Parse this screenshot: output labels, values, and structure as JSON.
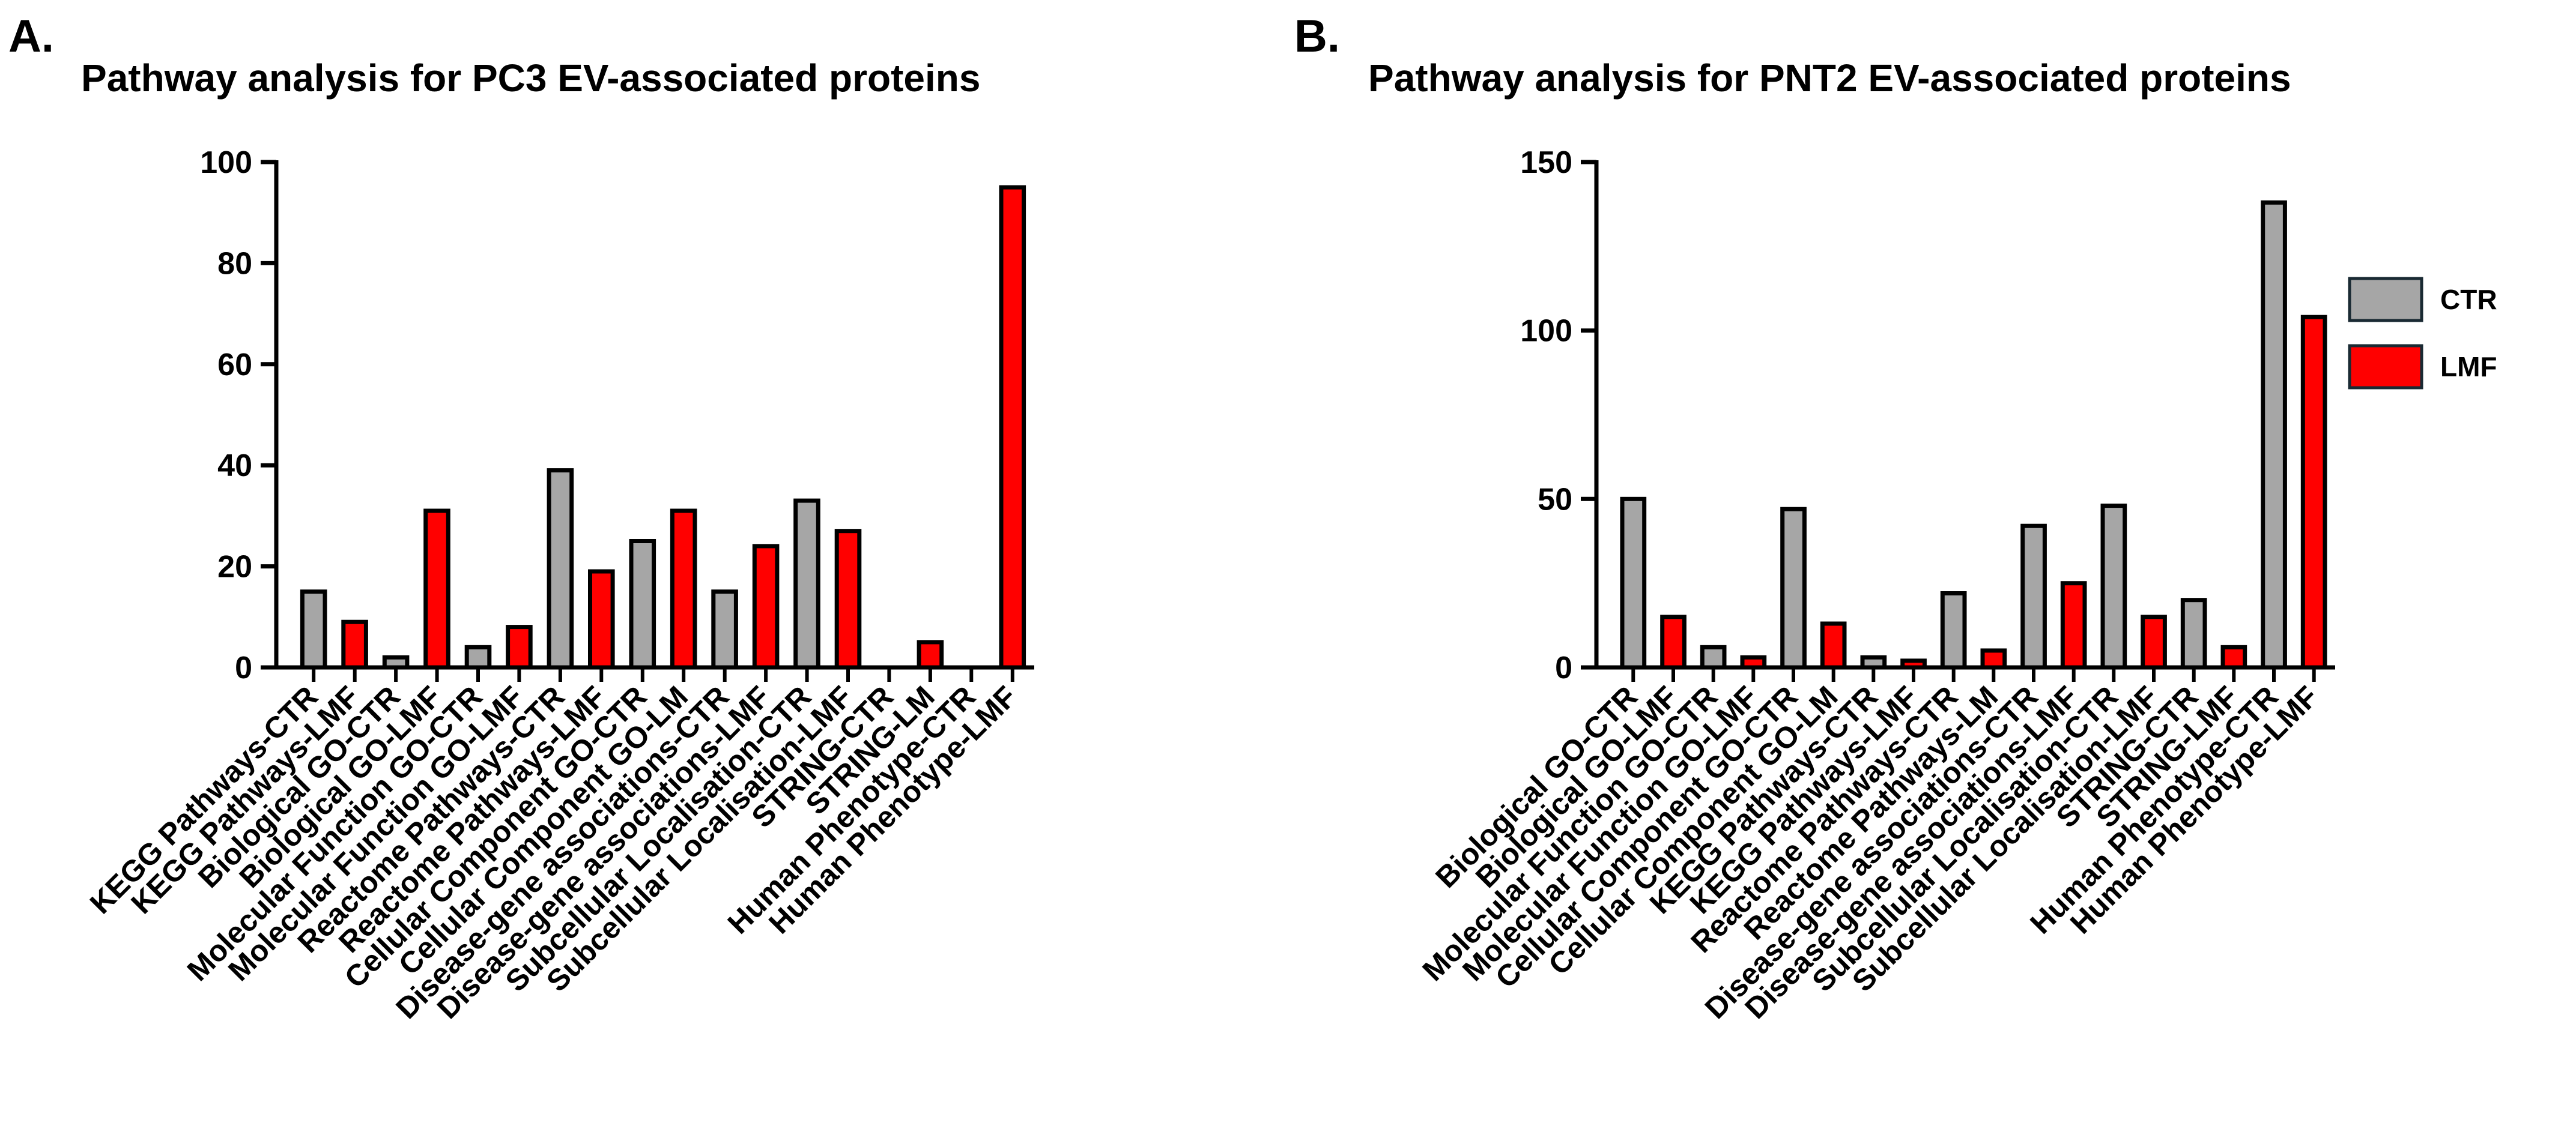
{
  "colors": {
    "CTR": "#a6a6a6",
    "LMF": "#ff0000",
    "outline": "#000000"
  },
  "legend": {
    "items": [
      {
        "label": "CTR",
        "color_key": "CTR"
      },
      {
        "label": "LMF",
        "color_key": "LMF"
      }
    ]
  },
  "chart_data": [
    {
      "type": "bar",
      "panel": "A.",
      "title": "Pathway analysis for PC3 EV-associated proteins",
      "xlabel": "",
      "ylabel": "",
      "ylim": [
        0,
        100
      ],
      "yticks": [
        0,
        20,
        40,
        60,
        80,
        100
      ],
      "categories": [
        "KEGG Pathways-CTR",
        "KEGG Pathways-LMF",
        "Biological GO-CTR",
        "Biological GO-LMF",
        "Molecular Function GO-CTR",
        "Molecular Function GO-LMF",
        "Reactome Pathways-CTR",
        "Reactome Pathways-LMF",
        "Cellular Component GO-CTR",
        "Cellular Component GO-LM",
        "Disease-gene associations-CTR",
        "Disease-gene associations-LMF",
        "Subcellular Localisation-CTR",
        "Subcellular Localisation-LMF",
        "STRING-CTR",
        "STRING-LM",
        "Human Phenotype-CTR",
        "Human Phenotype-LMF"
      ],
      "groups": [
        "CTR",
        "LMF",
        "CTR",
        "LMF",
        "CTR",
        "LMF",
        "CTR",
        "LMF",
        "CTR",
        "LMF",
        "CTR",
        "LMF",
        "CTR",
        "LMF",
        "CTR",
        "LMF",
        "CTR",
        "LMF"
      ],
      "values": [
        15,
        9,
        2,
        31,
        4,
        8,
        39,
        19,
        25,
        31,
        15,
        24,
        33,
        27,
        0,
        5,
        0,
        95
      ]
    },
    {
      "type": "bar",
      "panel": "B.",
      "title": "Pathway analysis for PNT2 EV-associated proteins",
      "xlabel": "",
      "ylabel": "",
      "ylim": [
        0,
        150
      ],
      "yticks": [
        0,
        50,
        100,
        150
      ],
      "categories": [
        "Biological GO-CTR",
        "Biological GO-LMF",
        "Molecular Function GO-CTR",
        "Molecular Function GO-LMF",
        "Cellular Component GO-CTR",
        "Cellular Component GO-LM",
        "KEGG Pathways-CTR",
        "KEGG Pathways-LMF",
        "Reactome Pathways-CTR",
        "Reactome Pathways-LM",
        "Disease-gene associations-CTR",
        "Disease-gene associations-LMF",
        "Subcellular Localisation-CTR",
        "Subcellular Localisation-LMF",
        "STRING-CTR",
        "STRING-LMF",
        "Human Phenotype-CTR",
        "Human Phenotype-LMF"
      ],
      "groups": [
        "CTR",
        "LMF",
        "CTR",
        "LMF",
        "CTR",
        "LMF",
        "CTR",
        "LMF",
        "CTR",
        "LMF",
        "CTR",
        "LMF",
        "CTR",
        "LMF",
        "CTR",
        "LMF",
        "CTR",
        "LMF"
      ],
      "values": [
        50,
        15,
        6,
        3,
        47,
        13,
        3,
        2,
        22,
        5,
        42,
        25,
        48,
        15,
        20,
        6,
        138,
        104
      ]
    }
  ]
}
